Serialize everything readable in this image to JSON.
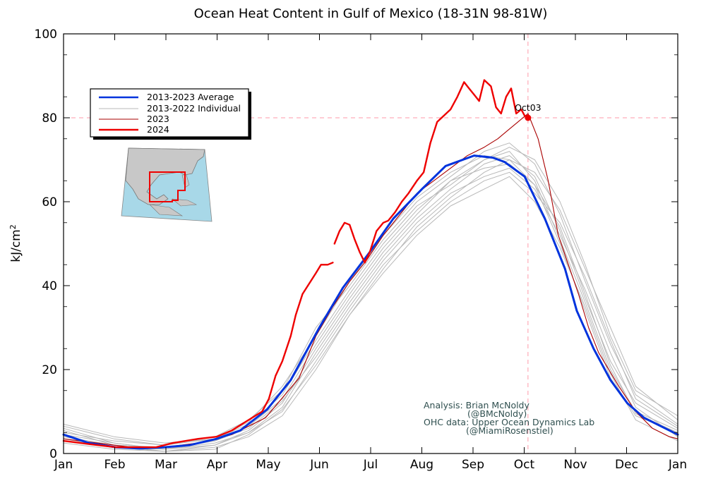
{
  "chart_data": {
    "type": "line",
    "title": "Ocean Heat Content in Gulf of Mexico (18-31N 98-81W)",
    "ylabel": "kJ/cm²",
    "xlabel": "",
    "ylim": [
      0,
      100
    ],
    "yticks": [
      0,
      20,
      40,
      60,
      80,
      100
    ],
    "x_tick_labels": [
      "Jan",
      "Feb",
      "Mar",
      "Apr",
      "May",
      "Jun",
      "Jul",
      "Aug",
      "Sep",
      "Oct",
      "Nov",
      "Dec",
      "Jan"
    ],
    "x_unit": "day of year",
    "xlim": [
      0,
      365
    ],
    "grid": false,
    "legend": {
      "placement": "upper-left",
      "entries": [
        {
          "label": "2013-2023 Average",
          "color": "#0033dd"
        },
        {
          "label": "2013-2022 Individual",
          "color": "#b8b8b8"
        },
        {
          "label": "2023",
          "color": "#aa0000"
        },
        {
          "label": "2024",
          "color": "#ee0000"
        }
      ]
    },
    "reference_lines": {
      "y": 80,
      "x": 276,
      "color": "#ff9aa8"
    },
    "marker": {
      "label": "Oct03",
      "x": 276,
      "y": 80,
      "color": "#ee0000"
    },
    "series": [
      {
        "name": "2013-2023 Average",
        "color": "#0033dd",
        "x": [
          0,
          15,
          31,
          45,
          60,
          75,
          91,
          105,
          121,
          135,
          152,
          166,
          182,
          196,
          213,
          227,
          244,
          255,
          262,
          274,
          286,
          298,
          305,
          315,
          325,
          335,
          345,
          355,
          365
        ],
        "y": [
          4.5,
          2.5,
          1.5,
          1.2,
          1.5,
          2.0,
          3.5,
          5.5,
          10.5,
          17.5,
          30.0,
          39.5,
          48.0,
          56.0,
          63.0,
          68.5,
          71.0,
          70.5,
          69.5,
          66.0,
          56.0,
          44.0,
          34.0,
          25.0,
          17.5,
          12.0,
          8.5,
          6.5,
          4.5
        ]
      },
      {
        "name": "2024",
        "color": "#ee0000",
        "segments": [
          {
            "x": [
              0,
              10,
              20,
              31,
              45,
              55,
              65,
              80,
              91,
              100,
              110,
              118,
              122,
              126,
              130,
              135,
              138,
              142,
              146,
              150,
              153,
              157,
              160
            ],
            "y": [
              3.0,
              2.5,
              2.0,
              1.5,
              1.5,
              1.5,
              2.5,
              3.5,
              4.0,
              5.5,
              8.0,
              10.0,
              13.0,
              18.5,
              22.0,
              28.0,
              33.0,
              38.0,
              40.5,
              43.0,
              45.0,
              45.0,
              45.5
            ]
          },
          {
            "x": [
              161,
              164,
              167,
              170,
              173,
              176,
              179,
              182,
              186,
              190,
              193,
              197,
              201,
              205,
              210,
              214,
              218,
              222,
              226,
              230,
              234,
              238,
              241,
              244,
              247,
              250,
              254,
              257,
              260,
              263,
              266,
              269,
              272,
              274,
              276
            ],
            "y": [
              50.0,
              53.0,
              55.0,
              54.5,
              51.0,
              48.0,
              45.5,
              48.0,
              53.0,
              55.0,
              55.5,
              57.5,
              60.0,
              62.0,
              65.0,
              67.0,
              74.0,
              79.0,
              80.5,
              82.0,
              85.0,
              88.5,
              87.0,
              85.5,
              84.0,
              89.0,
              87.5,
              82.5,
              81.0,
              85.0,
              87.0,
              81.0,
              82.0,
              80.5,
              80.0
            ]
          }
        ]
      },
      {
        "name": "2023",
        "color": "#aa0000",
        "x": [
          0,
          20,
          40,
          60,
          80,
          100,
          120,
          140,
          150,
          160,
          170,
          180,
          190,
          200,
          210,
          220,
          230,
          240,
          250,
          258,
          264,
          270,
          276,
          282,
          288,
          294,
          300,
          306,
          312,
          318,
          324,
          330,
          340,
          350,
          360,
          365
        ],
        "y": [
          3.5,
          2.5,
          1.5,
          1.5,
          2.5,
          4.5,
          8.5,
          18.0,
          28.0,
          35.0,
          41.0,
          46.0,
          52.0,
          57.0,
          62.0,
          65.0,
          68.0,
          71.0,
          73.0,
          75.0,
          77.0,
          79.0,
          81.0,
          75.0,
          65.0,
          52.0,
          45.0,
          38.0,
          30.0,
          24.0,
          20.0,
          16.0,
          10.0,
          6.0,
          4.0,
          3.5
        ]
      },
      {
        "name": "",
        "color": "#b8b8b8",
        "x": [
          0,
          30,
          60,
          90,
          110,
          130,
          150,
          170,
          190,
          210,
          230,
          250,
          265,
          280,
          295,
          310,
          325,
          340,
          365
        ],
        "y": [
          6.0,
          2.5,
          1.0,
          3.0,
          6.5,
          13.0,
          26.0,
          38.0,
          49.0,
          58.0,
          65.0,
          68.0,
          69.0,
          64.0,
          50.0,
          34.0,
          18.0,
          9.0,
          5.0
        ]
      },
      {
        "name": "",
        "color": "#b8b8b8",
        "x": [
          0,
          30,
          60,
          90,
          110,
          130,
          150,
          170,
          190,
          210,
          230,
          250,
          265,
          280,
          295,
          310,
          325,
          340,
          365
        ],
        "y": [
          3.0,
          1.5,
          1.0,
          2.0,
          5.0,
          11.0,
          24.0,
          36.0,
          47.0,
          56.0,
          63.0,
          69.0,
          71.0,
          66.0,
          53.0,
          37.0,
          22.0,
          12.0,
          6.0
        ]
      },
      {
        "name": "",
        "color": "#b8b8b8",
        "x": [
          0,
          30,
          60,
          90,
          110,
          130,
          150,
          170,
          190,
          210,
          230,
          250,
          265,
          280,
          295,
          310,
          325,
          340,
          365
        ],
        "y": [
          5.0,
          3.0,
          2.0,
          4.0,
          8.0,
          15.0,
          30.0,
          40.0,
          51.0,
          60.0,
          66.0,
          72.0,
          74.0,
          69.0,
          57.0,
          41.0,
          26.0,
          14.0,
          7.0
        ]
      },
      {
        "name": "",
        "color": "#b8b8b8",
        "x": [
          0,
          30,
          60,
          90,
          110,
          130,
          150,
          170,
          190,
          210,
          230,
          250,
          265,
          280,
          295,
          310,
          325,
          340,
          365
        ],
        "y": [
          4.0,
          2.0,
          0.5,
          1.5,
          4.0,
          9.0,
          20.0,
          33.0,
          44.0,
          54.0,
          61.0,
          67.0,
          70.0,
          67.0,
          58.0,
          44.0,
          30.0,
          16.0,
          8.0
        ]
      },
      {
        "name": "",
        "color": "#b8b8b8",
        "x": [
          0,
          30,
          60,
          90,
          110,
          130,
          150,
          170,
          190,
          210,
          230,
          250,
          265,
          280,
          295,
          310,
          325,
          340,
          365
        ],
        "y": [
          7.0,
          4.0,
          2.5,
          3.5,
          7.0,
          14.0,
          27.0,
          39.0,
          50.0,
          59.0,
          64.0,
          70.0,
          72.0,
          65.0,
          51.0,
          36.0,
          20.0,
          10.0,
          5.5
        ]
      },
      {
        "name": "",
        "color": "#b8b8b8",
        "x": [
          0,
          30,
          60,
          90,
          110,
          130,
          150,
          170,
          190,
          210,
          230,
          250,
          265,
          280,
          295,
          310,
          325,
          340,
          365
        ],
        "y": [
          2.5,
          1.0,
          0.5,
          2.0,
          5.5,
          12.0,
          25.0,
          37.0,
          48.0,
          57.0,
          65.0,
          70.0,
          73.0,
          70.0,
          60.0,
          45.0,
          28.0,
          15.0,
          9.0
        ]
      },
      {
        "name": "",
        "color": "#b8b8b8",
        "x": [
          0,
          30,
          60,
          90,
          110,
          130,
          150,
          170,
          190,
          210,
          230,
          250,
          265,
          280,
          295,
          310,
          325,
          340,
          365
        ],
        "y": [
          5.5,
          2.0,
          1.5,
          3.0,
          6.0,
          12.5,
          23.0,
          35.0,
          46.0,
          55.0,
          62.0,
          66.0,
          68.0,
          63.0,
          52.0,
          39.0,
          24.0,
          11.0,
          4.0
        ]
      },
      {
        "name": "",
        "color": "#b8b8b8",
        "x": [
          0,
          30,
          60,
          90,
          110,
          130,
          150,
          170,
          190,
          210,
          230,
          250,
          265,
          280,
          295,
          310,
          325,
          340,
          365
        ],
        "y": [
          4.5,
          2.5,
          1.0,
          2.5,
          5.0,
          10.0,
          22.0,
          34.0,
          45.0,
          53.0,
          60.0,
          65.0,
          67.0,
          62.0,
          55.0,
          42.0,
          27.0,
          13.0,
          6.5
        ]
      },
      {
        "name": "",
        "color": "#b8b8b8",
        "x": [
          0,
          30,
          60,
          90,
          110,
          130,
          150,
          170,
          190,
          210,
          230,
          250,
          265,
          280,
          295,
          310,
          325,
          340,
          365
        ],
        "y": [
          6.5,
          3.5,
          2.0,
          3.5,
          7.5,
          16.0,
          28.0,
          41.0,
          52.0,
          61.0,
          67.0,
          71.0,
          70.0,
          64.0,
          54.0,
          38.0,
          21.0,
          9.5,
          5.0
        ]
      },
      {
        "name": "",
        "color": "#b8b8b8",
        "x": [
          0,
          30,
          60,
          90,
          110,
          130,
          150,
          170,
          190,
          210,
          230,
          250,
          265,
          280,
          295,
          310,
          325,
          340,
          365
        ],
        "y": [
          3.5,
          1.5,
          0.5,
          1.0,
          4.5,
          10.5,
          21.0,
          33.0,
          43.0,
          52.0,
          59.0,
          63.0,
          66.0,
          60.0,
          49.0,
          35.0,
          19.0,
          8.0,
          3.0
        ]
      }
    ],
    "credits": [
      "Analysis: Brian McNoldy",
      "(@BMcNoldy)",
      "OHC data: Upper Ocean Dynamics Lab",
      "(@MiamiRosenstiel)"
    ]
  },
  "inset_map": {
    "land_color": "#c8c8c8",
    "water_color": "#a8d8e8",
    "box_color": "#ee0000"
  }
}
